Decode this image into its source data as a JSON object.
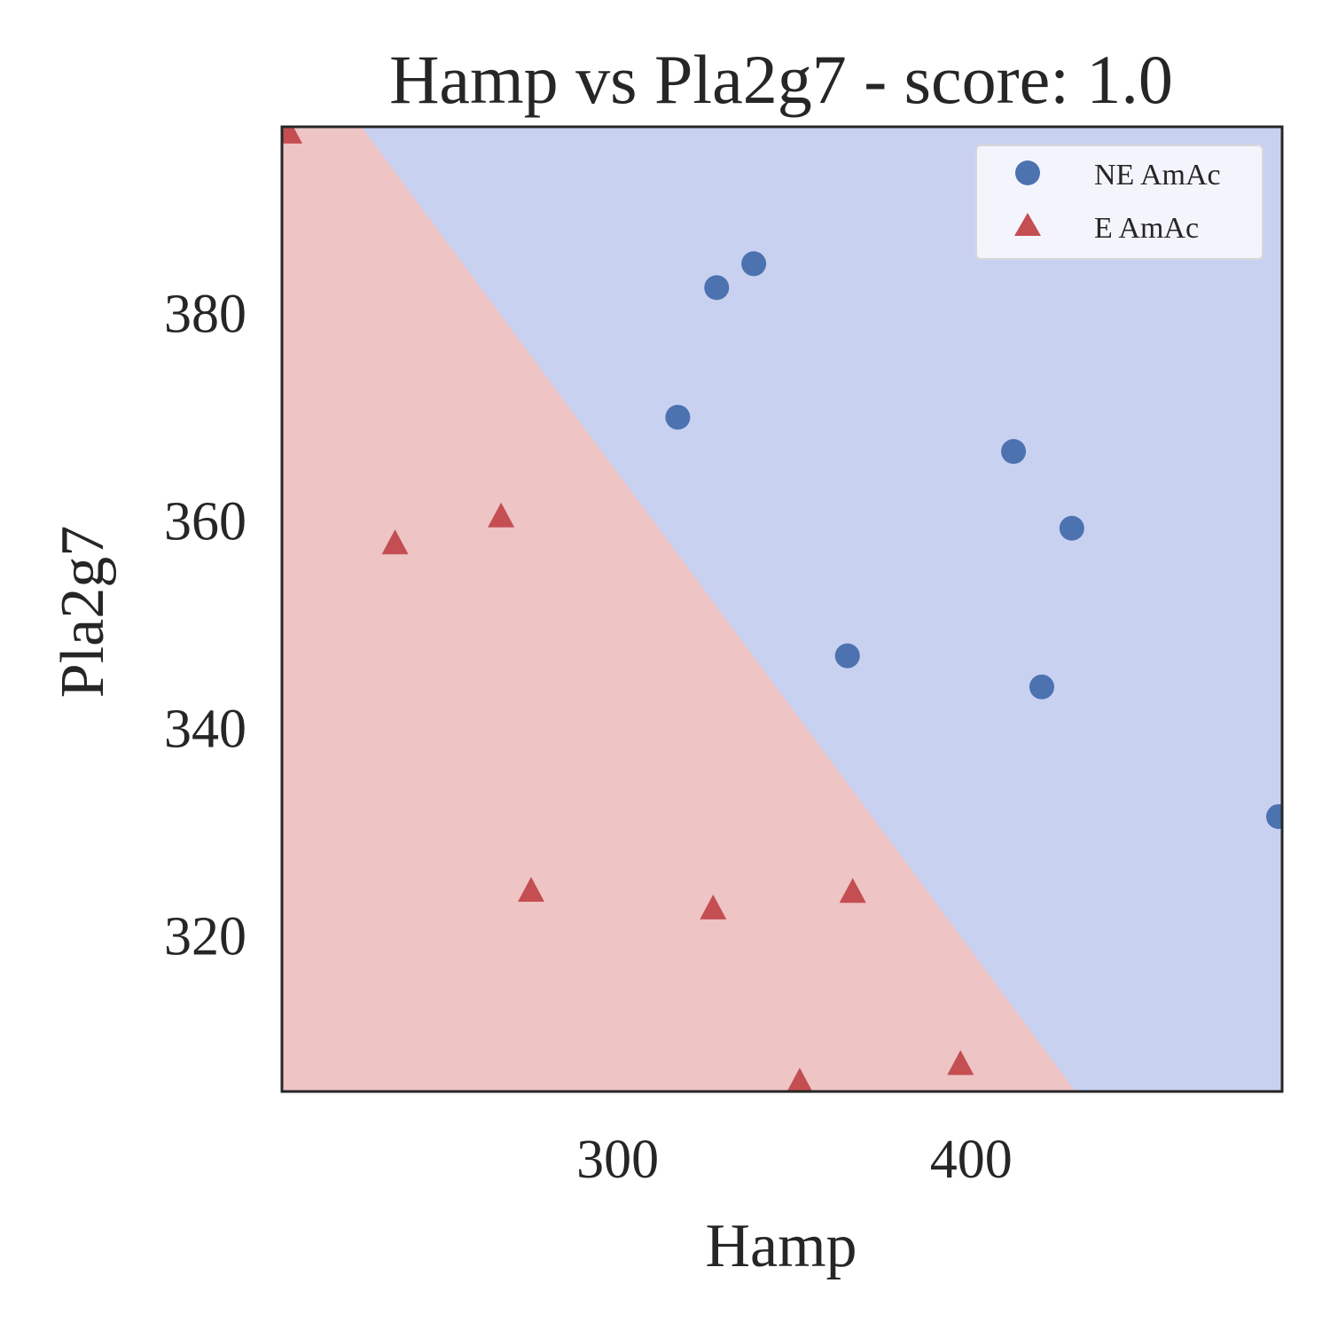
{
  "chart_data": {
    "type": "scatter",
    "title": "Hamp vs Pla2g7 - score: 1.0",
    "xlabel": "Hamp",
    "ylabel": "Pla2g7",
    "xlim": [
      205,
      488
    ],
    "ylim": [
      305,
      398
    ],
    "xticks": [
      300,
      400
    ],
    "yticks": [
      320,
      340,
      360,
      380
    ],
    "xtick_labels": [
      "300",
      "400"
    ],
    "ytick_labels": [
      "320",
      "340",
      "360",
      "380"
    ],
    "grid": false,
    "legend_position": "top-right",
    "decision_boundary": {
      "points": [
        [
          227.5,
          398
        ],
        [
          429.5,
          305
        ]
      ],
      "upper_class": "NE AmAc",
      "lower_class": "E AmAc",
      "upper_color": "#c9d1f1",
      "lower_color": "#eec4c4"
    },
    "series": [
      {
        "name": "NE AmAc",
        "marker": "circle",
        "color": "#4c72b0",
        "x": [
          317,
          328,
          338.5,
          365,
          412,
          428.5,
          420,
          487
        ],
        "y": [
          370,
          382.5,
          384.8,
          347,
          366.7,
          359.3,
          344,
          331.5
        ]
      },
      {
        "name": "E AmAc",
        "marker": "triangle",
        "color": "#c44e52",
        "x": [
          207,
          237,
          267,
          275.5,
          327,
          351.5,
          366.5,
          397
        ],
        "y": [
          397.3,
          357.7,
          360.3,
          324.2,
          322.5,
          305.8,
          324.1,
          307.5
        ]
      }
    ]
  }
}
